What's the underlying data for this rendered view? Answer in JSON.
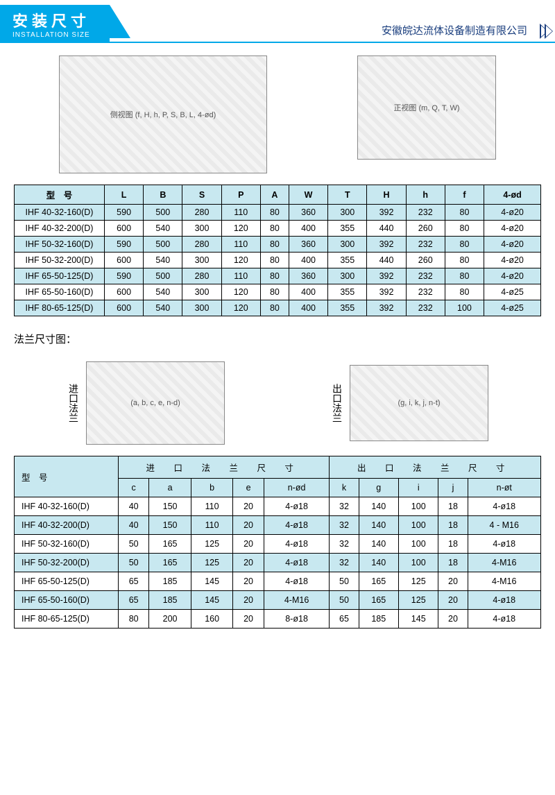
{
  "header": {
    "title_cn": "安装尺寸",
    "title_en": "INSTALLATION SIZE",
    "company": "安徽皖达流体设备制造有限公司"
  },
  "colors": {
    "primary": "#00a8e8",
    "header_row": "#c8e8f0",
    "company_text": "#1a3e7e",
    "border": "#000000",
    "background": "#ffffff"
  },
  "diagram_labels": {
    "side_view": "侧视图 (f, H, h, P, S, B, L, 4-ød)",
    "front_view": "正视图 (m, Q, T, W)",
    "inlet_flange_label": "进口法兰",
    "inlet_dims": "(a, b, c, e, n-d)",
    "outlet_flange_label": "出口法兰",
    "outlet_dims": "(g, i, k, j, n-t)"
  },
  "table1": {
    "columns": [
      "型　号",
      "L",
      "B",
      "S",
      "P",
      "A",
      "W",
      "T",
      "H",
      "h",
      "f",
      "4-ød"
    ],
    "rows": [
      [
        "IHF 40-32-160(D)",
        "590",
        "500",
        "280",
        "110",
        "80",
        "360",
        "300",
        "392",
        "232",
        "80",
        "4-ø20"
      ],
      [
        "IHF 40-32-200(D)",
        "600",
        "540",
        "300",
        "120",
        "80",
        "400",
        "355",
        "440",
        "260",
        "80",
        "4-ø20"
      ],
      [
        "IHF 50-32-160(D)",
        "590",
        "500",
        "280",
        "110",
        "80",
        "360",
        "300",
        "392",
        "232",
        "80",
        "4-ø20"
      ],
      [
        "IHF 50-32-200(D)",
        "600",
        "540",
        "300",
        "120",
        "80",
        "400",
        "355",
        "440",
        "260",
        "80",
        "4-ø20"
      ],
      [
        "IHF 65-50-125(D)",
        "590",
        "500",
        "280",
        "110",
        "80",
        "360",
        "300",
        "392",
        "232",
        "80",
        "4-ø20"
      ],
      [
        "IHF 65-50-160(D)",
        "600",
        "540",
        "300",
        "120",
        "80",
        "400",
        "355",
        "392",
        "232",
        "80",
        "4-ø25"
      ],
      [
        "IHF 80-65-125(D)",
        "600",
        "540",
        "300",
        "120",
        "80",
        "400",
        "355",
        "392",
        "232",
        "100",
        "4-ø25"
      ]
    ],
    "alt_row_indices": [
      0,
      2,
      4,
      6
    ]
  },
  "flange_section_title": "法兰尺寸图：",
  "table2": {
    "model_header": "型　号",
    "group_inlet": "进 口 法 兰 尺 寸",
    "group_outlet": "出 口 法 兰 尺 寸",
    "sub_inlet": [
      "c",
      "a",
      "b",
      "e",
      "n-ød"
    ],
    "sub_outlet": [
      "k",
      "g",
      "i",
      "j",
      "n-øt"
    ],
    "rows": [
      [
        "IHF 40-32-160(D)",
        "40",
        "150",
        "110",
        "20",
        "4-ø18",
        "32",
        "140",
        "100",
        "18",
        "4-ø18"
      ],
      [
        "IHF 40-32-200(D)",
        "40",
        "150",
        "110",
        "20",
        "4-ø18",
        "32",
        "140",
        "100",
        "18",
        "4 - M16"
      ],
      [
        "IHF 50-32-160(D)",
        "50",
        "165",
        "125",
        "20",
        "4-ø18",
        "32",
        "140",
        "100",
        "18",
        "4-ø18"
      ],
      [
        "IHF 50-32-200(D)",
        "50",
        "165",
        "125",
        "20",
        "4-ø18",
        "32",
        "140",
        "100",
        "18",
        "4-M16"
      ],
      [
        "IHF 65-50-125(D)",
        "65",
        "185",
        "145",
        "20",
        "4-ø18",
        "50",
        "165",
        "125",
        "20",
        "4-M16"
      ],
      [
        "IHF 65-50-160(D)",
        "65",
        "185",
        "145",
        "20",
        "4-M16",
        "50",
        "165",
        "125",
        "20",
        "4-ø18"
      ],
      [
        "IHF 80-65-125(D)",
        "80",
        "200",
        "160",
        "20",
        "8-ø18",
        "65",
        "185",
        "145",
        "20",
        "4-ø18"
      ]
    ],
    "alt_row_indices": [
      1,
      3,
      5
    ]
  }
}
